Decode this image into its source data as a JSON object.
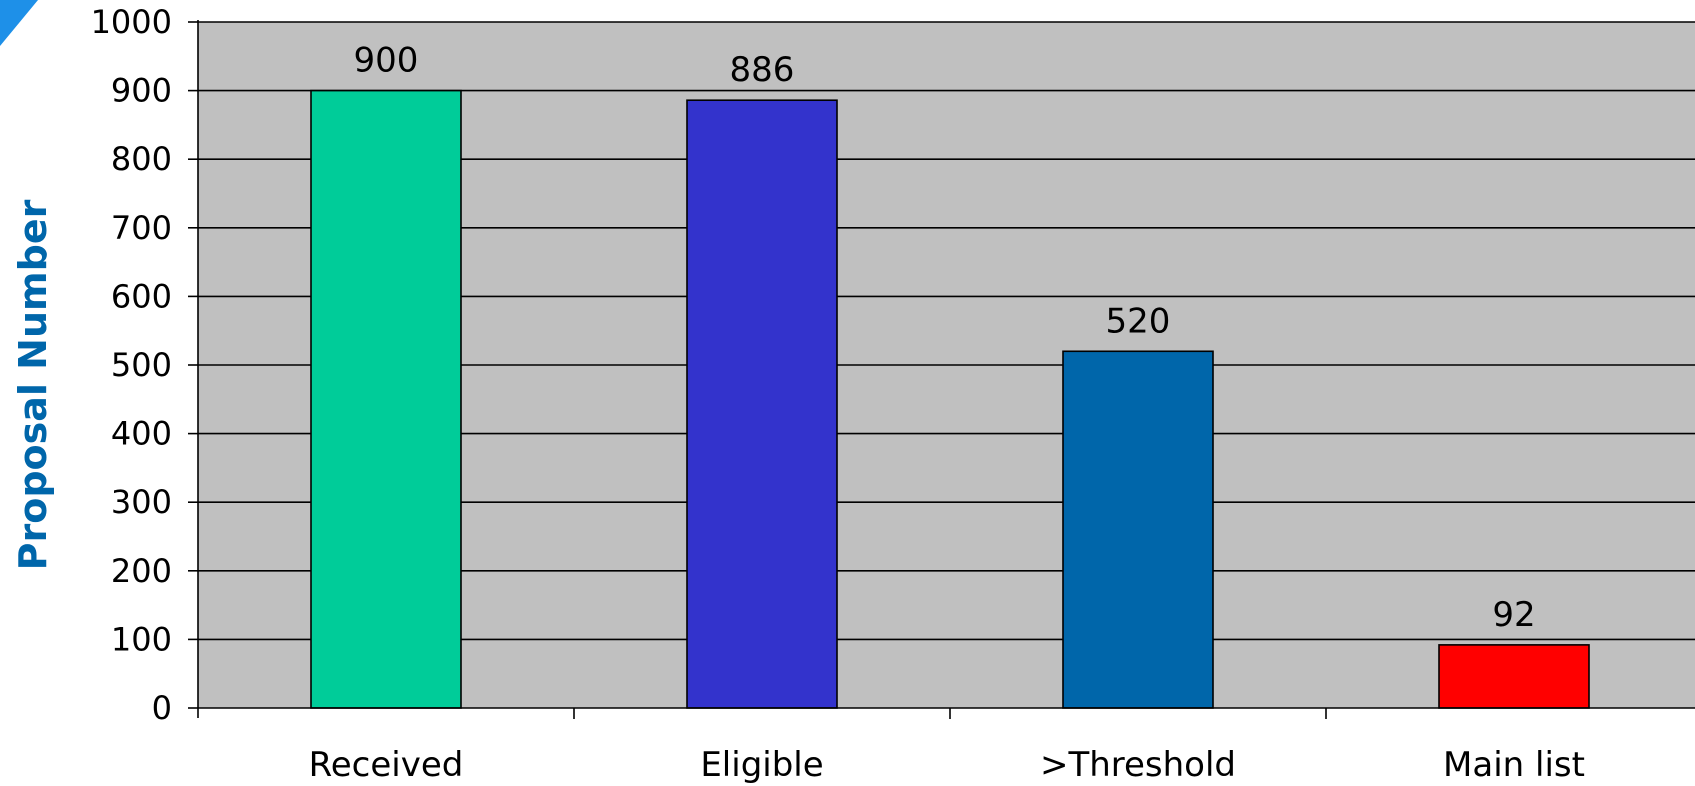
{
  "chart_data": {
    "type": "bar",
    "categories": [
      "Received",
      "Eligible",
      ">Threshold",
      "Main list"
    ],
    "values": [
      900,
      886,
      520,
      92
    ],
    "data_labels": [
      "900",
      "886",
      "520",
      "92"
    ],
    "bar_colors": [
      "#00CC99",
      "#3333CC",
      "#0066AA",
      "#FF0000"
    ],
    "ylabel": "Proposal Number",
    "ylim": [
      0,
      1000
    ],
    "yticks": [
      "0",
      "100",
      "200",
      "300",
      "400",
      "500",
      "600",
      "700",
      "800",
      "900",
      "1000"
    ],
    "grid": true,
    "legend": "none",
    "plot_background": "#C0C0C0",
    "ylabel_color": "#0066AA",
    "corner_accent_color": "#1E90E8"
  }
}
